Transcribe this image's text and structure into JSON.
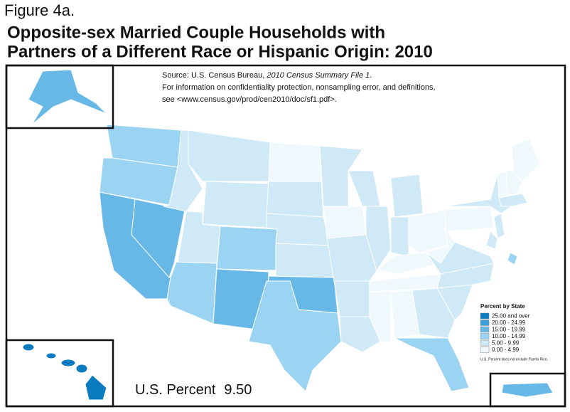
{
  "figure_label": "Figure 4a.",
  "title": [
    "Opposite-sex Married Couple Households with",
    "Partners of a Different Race or Hispanic Origin: 2010"
  ],
  "source": {
    "prefix": "Source: U.S. Census Bureau, ",
    "italic": "2010 Census Summary File 1",
    "suffix": ".",
    "lines": [
      "For information on confidentiality protection, nonsampling error, and definitions,",
      "see <www.census.gov/prod/cen2010/doc/sf1.pdf>."
    ]
  },
  "legend": {
    "title": "Percent by State",
    "classes": [
      {
        "label": "25.00 and over",
        "color": "#0b7bbf"
      },
      {
        "label": "20.00 - 24.99",
        "color": "#3b9fd9"
      },
      {
        "label": "15.00 - 19.99",
        "color": "#67b8e6"
      },
      {
        "label": "10.00 - 14.99",
        "color": "#9bd4f2"
      },
      {
        "label": "5.00 - 9.99",
        "color": "#cfe9f7"
      },
      {
        "label": "0.00 - 4.99",
        "color": "#eff8fd"
      }
    ],
    "note": "U.S. Percent does not include Puerto Rico."
  },
  "us_percent": {
    "label": "U.S. Percent",
    "value": "9.50"
  }
}
